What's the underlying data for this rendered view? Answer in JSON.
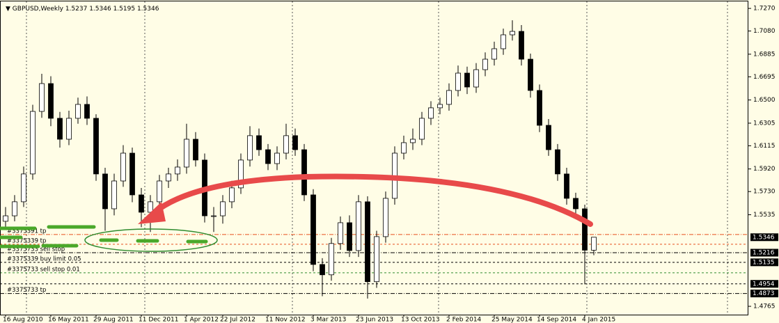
{
  "chart_data": {
    "type": "candlestick",
    "symbol": "GBPUSD,Weekly",
    "ohlc": [
      1.5237,
      1.5346,
      1.5195,
      1.5346
    ],
    "bull_color": "#ffffff",
    "bear_color": "#000000",
    "candles": [
      [
        1.548,
        1.56,
        1.542,
        1.5526
      ],
      [
        1.5526,
        1.57,
        1.548,
        1.5644
      ],
      [
        1.5644,
        1.594,
        1.56,
        1.5878
      ],
      [
        1.5878,
        1.646,
        1.583,
        1.6404
      ],
      [
        1.6404,
        1.672,
        1.635,
        1.6638
      ],
      [
        1.6638,
        1.67,
        1.628,
        1.6346
      ],
      [
        1.6346,
        1.64,
        1.61,
        1.617
      ],
      [
        1.617,
        1.641,
        1.612,
        1.6346
      ],
      [
        1.6346,
        1.652,
        1.63,
        1.6463
      ],
      [
        1.6463,
        1.653,
        1.629,
        1.6346
      ],
      [
        1.6346,
        1.638,
        1.582,
        1.5878
      ],
      [
        1.5878,
        1.593,
        1.54,
        1.5585
      ],
      [
        1.5585,
        1.588,
        1.553,
        1.5819
      ],
      [
        1.5819,
        1.612,
        1.577,
        1.6053
      ],
      [
        1.6053,
        1.61,
        1.564,
        1.5702
      ],
      [
        1.5702,
        1.576,
        1.543,
        1.5556
      ],
      [
        1.5556,
        1.57,
        1.539,
        1.5644
      ],
      [
        1.5644,
        1.587,
        1.559,
        1.5819
      ],
      [
        1.5819,
        1.593,
        1.576,
        1.5878
      ],
      [
        1.5878,
        1.6,
        1.582,
        1.5936
      ],
      [
        1.5936,
        1.63,
        1.588,
        1.617
      ],
      [
        1.617,
        1.623,
        1.594,
        1.5995
      ],
      [
        1.5995,
        1.605,
        1.547,
        1.5526
      ],
      [
        1.5526,
        1.56,
        1.539,
        1.5526
      ],
      [
        1.5526,
        1.57,
        1.546,
        1.5644
      ],
      [
        1.5644,
        1.582,
        1.559,
        1.5761
      ],
      [
        1.5761,
        1.605,
        1.571,
        1.5995
      ],
      [
        1.5995,
        1.628,
        1.594,
        1.62
      ],
      [
        1.62,
        1.626,
        1.603,
        1.6082
      ],
      [
        1.6082,
        1.613,
        1.591,
        1.5965
      ],
      [
        1.5965,
        1.611,
        1.591,
        1.6053
      ],
      [
        1.6053,
        1.63,
        1.6,
        1.62
      ],
      [
        1.62,
        1.626,
        1.603,
        1.6082
      ],
      [
        1.6082,
        1.613,
        1.565,
        1.5702
      ],
      [
        1.5702,
        1.575,
        1.506,
        1.5117
      ],
      [
        1.5117,
        1.517,
        1.485,
        1.503
      ],
      [
        1.503,
        1.534,
        1.498,
        1.5293
      ],
      [
        1.5293,
        1.552,
        1.524,
        1.5468
      ],
      [
        1.5468,
        1.553,
        1.518,
        1.5234
      ],
      [
        1.5234,
        1.57,
        1.518,
        1.5644
      ],
      [
        1.5644,
        1.569,
        1.483,
        1.4972
      ],
      [
        1.4972,
        1.54,
        1.492,
        1.5351
      ],
      [
        1.5351,
        1.573,
        1.53,
        1.5673
      ],
      [
        1.5673,
        1.611,
        1.562,
        1.6053
      ],
      [
        1.6053,
        1.62,
        1.6,
        1.6141
      ],
      [
        1.6141,
        1.626,
        1.608,
        1.617
      ],
      [
        1.617,
        1.64,
        1.612,
        1.6346
      ],
      [
        1.6346,
        1.649,
        1.629,
        1.6434
      ],
      [
        1.6434,
        1.652,
        1.638,
        1.6463
      ],
      [
        1.6463,
        1.664,
        1.641,
        1.658
      ],
      [
        1.658,
        1.679,
        1.653,
        1.6726
      ],
      [
        1.6726,
        1.678,
        1.655,
        1.6609
      ],
      [
        1.6609,
        1.681,
        1.656,
        1.6755
      ],
      [
        1.6755,
        1.69,
        1.67,
        1.6843
      ],
      [
        1.6843,
        1.699,
        1.679,
        1.6931
      ],
      [
        1.6931,
        1.71,
        1.688,
        1.7048
      ],
      [
        1.7048,
        1.717,
        1.7,
        1.7077
      ],
      [
        1.7077,
        1.713,
        1.679,
        1.6843
      ],
      [
        1.6843,
        1.689,
        1.652,
        1.658
      ],
      [
        1.658,
        1.663,
        1.623,
        1.6287
      ],
      [
        1.6287,
        1.634,
        1.603,
        1.6082
      ],
      [
        1.6082,
        1.613,
        1.582,
        1.5878
      ],
      [
        1.5878,
        1.593,
        1.562,
        1.5673
      ],
      [
        1.5673,
        1.572,
        1.553,
        1.5585
      ],
      [
        1.5585,
        1.562,
        1.495,
        1.5237
      ],
      [
        1.5237,
        1.5346,
        1.5195,
        1.5346
      ]
    ],
    "x_labels": [
      {
        "index": 0,
        "label": "16 Aug 2010"
      },
      {
        "index": 5,
        "label": "16 May 2011"
      },
      {
        "index": 10,
        "label": "29 Aug 2011"
      },
      {
        "index": 15,
        "label": "11 Dec 2011"
      },
      {
        "index": 20,
        "label": "1 Apr 2012"
      },
      {
        "index": 24,
        "label": "22 Jul 2012"
      },
      {
        "index": 29,
        "label": "11 Nov 2012"
      },
      {
        "index": 34,
        "label": "3 Mar 2013"
      },
      {
        "index": 39,
        "label": "23 Jun 2013"
      },
      {
        "index": 44,
        "label": "13 Oct 2013"
      },
      {
        "index": 49,
        "label": "2 Feb 2014"
      },
      {
        "index": 54,
        "label": "25 May 2014"
      },
      {
        "index": 59,
        "label": "14 Sep 2014"
      },
      {
        "index": 64,
        "label": "4 Jan 2015"
      }
    ],
    "ylim": [
      1.4695,
      1.7329
    ],
    "yticks": [
      {
        "value": 1.727,
        "label": "1.7270"
      },
      {
        "value": 1.708,
        "label": "1.7080"
      },
      1.6885,
      1.6695,
      {
        "value": 1.65,
        "label": "1.6500"
      },
      1.6305,
      1.6115,
      {
        "value": 1.592,
        "label": "1.5920"
      },
      {
        "value": 1.573,
        "label": "1.5730"
      },
      1.5535,
      1.4765
    ],
    "axis_markers": [
      1.5346,
      1.5216,
      1.5135,
      1.4954,
      1.4873
    ],
    "order_lines": [
      {
        "value": 1.5369,
        "label": "#3375391 tp",
        "color": "#e8501e",
        "dash": "6 2 1 2"
      },
      {
        "value": 1.5287,
        "label": "#3375339 tp",
        "color": "#e8501e",
        "dash": "3 3"
      },
      {
        "value": 1.5216,
        "label": "#3375733 sell stop",
        "color": "#000000",
        "dash": "6 2 1 2"
      },
      {
        "value": 1.5135,
        "label": "#3375339 buy limit 0.05",
        "color": "#000000",
        "dash": "3 3"
      },
      {
        "value": 1.5047,
        "label": "#3375733 sell stop 0.01",
        "color": "#2e8b2e",
        "dash": "3 3"
      },
      {
        "value": 1.4954,
        "color": "#000000",
        "dash": "3 3"
      },
      {
        "value": 1.4873,
        "label": "#3375733 tp",
        "color": "#000000",
        "dash": "6 2 1 2"
      }
    ]
  }
}
